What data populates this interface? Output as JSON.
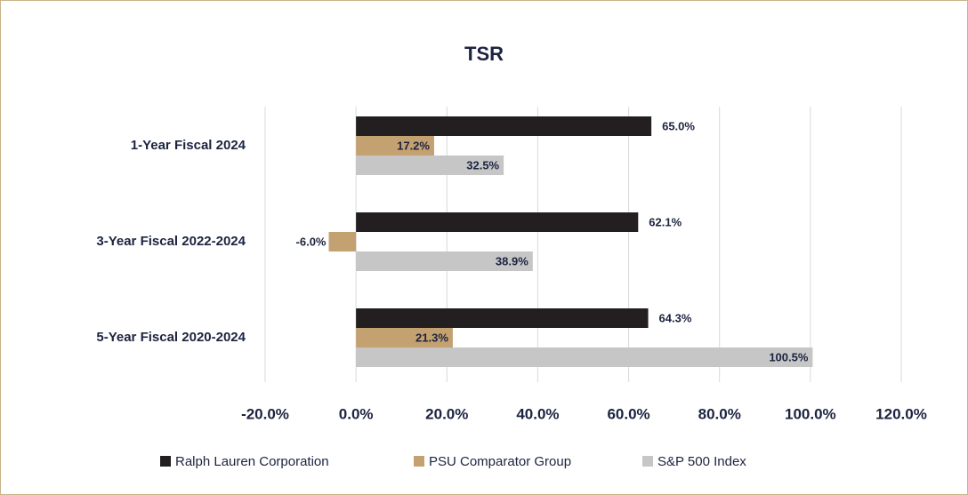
{
  "chart_data": {
    "type": "hbar",
    "title": "TSR",
    "categories": [
      "1-Year Fiscal 2024",
      "3-Year Fiscal 2022-2024",
      "5-Year Fiscal 2020-2024"
    ],
    "series": [
      {
        "name": "Ralph Lauren Corporation",
        "color": "#231f20",
        "values": [
          65.0,
          62.1,
          64.3
        ],
        "value_labels": [
          "65.0%",
          "62.1%",
          "64.3%"
        ]
      },
      {
        "name": "PSU Comparator Group",
        "color": "#c4a170",
        "values": [
          17.2,
          -6.0,
          21.3
        ],
        "value_labels": [
          "17.2%",
          "-6.0%",
          "21.3%"
        ]
      },
      {
        "name": "S&P 500 Index",
        "color": "#c6c6c6",
        "values": [
          32.5,
          38.9,
          100.5
        ],
        "value_labels": [
          "32.5%",
          "38.9%",
          "100.5%"
        ]
      }
    ],
    "xlim": [
      -20,
      120
    ],
    "xticks": [
      {
        "value": -20,
        "label": "-20.0%"
      },
      {
        "value": 0,
        "label": "0.0%"
      },
      {
        "value": 20,
        "label": "20.0%"
      },
      {
        "value": 40,
        "label": "40.0%"
      },
      {
        "value": 60,
        "label": "60.0%"
      },
      {
        "value": 80,
        "label": "80.0%"
      },
      {
        "value": 100,
        "label": "100.0%"
      },
      {
        "value": 120,
        "label": "120.0%"
      }
    ],
    "grid": true,
    "legend": "bottom"
  }
}
